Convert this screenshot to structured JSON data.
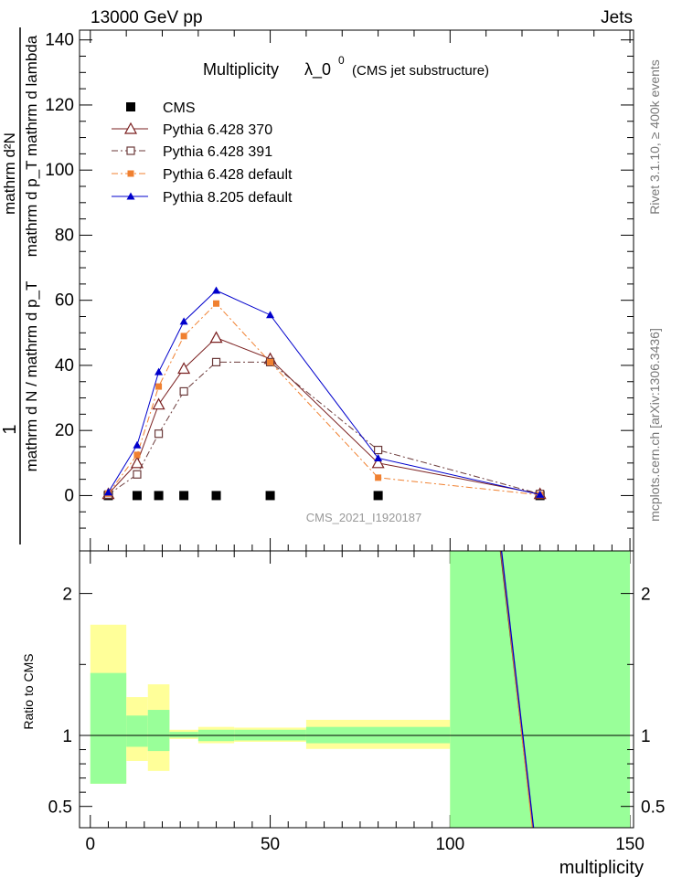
{
  "header": {
    "left": "13000 GeV pp",
    "right": "Jets"
  },
  "side_text": {
    "rivet": "Rivet 3.1.10, ≥ 400k events",
    "mcplots": "mcplots.cern.ch [arXiv:1306.3436]"
  },
  "watermark": "CMS_2021_I1920187",
  "colors": {
    "cms": "#000000",
    "p6_370": "#7a1f1f",
    "p6_391": "#6b3a3a",
    "p6_default": "#f08030",
    "p8_default": "#0000cc",
    "band_green": "#99ff99",
    "band_yellow": "#ffff99"
  },
  "chart_data": [
    {
      "type": "line",
      "title": "Multiplicity",
      "title_lambda": "λ_0",
      "title_sup": "0",
      "title_suffix": "(CMS jet substructure)",
      "xlabel": "multiplicity",
      "ylabel_numerator": "1",
      "ylabel_denominator": "mathrm d N / mathrm d p_T",
      "ylabel_numer2": "mathrm d²N",
      "ylabel_denom2": "mathrm d p_T mathrm d lambda",
      "xlim": [
        -3,
        151
      ],
      "ylim": [
        -17,
        143
      ],
      "yticks": [
        "0",
        "20",
        "40",
        "60",
        "80",
        "100",
        "120",
        "140"
      ],
      "legend_position": "top-left",
      "series": [
        {
          "name": "CMS",
          "marker": "filled-square",
          "line": "none",
          "x": [
            5,
            13,
            19,
            26,
            35,
            50,
            80,
            125
          ],
          "y": [
            0,
            0,
            0,
            0,
            0,
            0,
            0,
            0
          ]
        },
        {
          "name": "Pythia 6.428 370",
          "marker": "open-triangle",
          "line": "solid",
          "x": [
            5,
            13,
            19,
            26,
            35,
            50,
            80,
            125
          ],
          "y": [
            0.5,
            10,
            28,
            39,
            48.5,
            42,
            10,
            0.5
          ]
        },
        {
          "name": "Pythia 6.428 391",
          "marker": "open-square",
          "line": "dashdot",
          "x": [
            5,
            13,
            19,
            26,
            35,
            50,
            80,
            125
          ],
          "y": [
            0.3,
            6.5,
            19,
            32,
            41,
            41,
            14,
            0.5
          ]
        },
        {
          "name": "Pythia 6.428 default",
          "marker": "filled-square-small",
          "line": "dashdot",
          "x": [
            5,
            13,
            19,
            26,
            35,
            50,
            80,
            125
          ],
          "y": [
            0.6,
            12.5,
            33.5,
            49,
            59,
            41,
            5.5,
            0.2
          ]
        },
        {
          "name": "Pythia 8.205 default",
          "marker": "filled-triangle",
          "line": "solid",
          "x": [
            5,
            13,
            19,
            26,
            35,
            50,
            80,
            125
          ],
          "y": [
            1,
            15.5,
            38,
            53.5,
            63,
            55.5,
            11.5,
            0.3
          ]
        }
      ]
    },
    {
      "type": "area",
      "ylabel": "Ratio to CMS",
      "xlim": [
        -3,
        151
      ],
      "ylim": [
        0.35,
        2.3
      ],
      "yticks": [
        "0.5",
        "1",
        "2"
      ],
      "xticks": [
        "0",
        "50",
        "100",
        "150"
      ],
      "bands": [
        {
          "x0": 0,
          "x1": 10,
          "yellow": [
            0.66,
            1.78
          ],
          "green": [
            0.66,
            1.44
          ]
        },
        {
          "x0": 10,
          "x1": 16,
          "yellow": [
            0.82,
            1.27
          ],
          "green": [
            0.92,
            1.14
          ]
        },
        {
          "x0": 16,
          "x1": 22,
          "yellow": [
            0.75,
            1.36
          ],
          "green": [
            0.89,
            1.18
          ]
        },
        {
          "x0": 22,
          "x1": 30,
          "yellow": [
            0.975,
            1.04
          ],
          "green": [
            0.985,
            1.025
          ]
        },
        {
          "x0": 30,
          "x1": 40,
          "yellow": [
            0.945,
            1.06
          ],
          "green": [
            0.96,
            1.04
          ]
        },
        {
          "x0": 40,
          "x1": 60,
          "yellow": [
            0.955,
            1.055
          ],
          "green": [
            0.965,
            1.04
          ]
        },
        {
          "x0": 60,
          "x1": 100,
          "yellow": [
            0.905,
            1.11
          ],
          "green": [
            0.945,
            1.06
          ]
        },
        {
          "x0": 100,
          "x1": 150,
          "yellow": [
            0.35,
            2.3
          ],
          "green": [
            0.35,
            2.3
          ]
        }
      ],
      "ratio_lines": [
        {
          "name": "Pythia 6.428 370",
          "x": [
            114,
            123
          ],
          "y": [
            2.3,
            0.35
          ]
        },
        {
          "name": "Pythia 6.428 391",
          "x": [
            114.1,
            123.1
          ],
          "y": [
            2.3,
            0.35
          ]
        },
        {
          "name": "Pythia 6.428 default",
          "x": [
            114.2,
            122.9
          ],
          "y": [
            2.3,
            0.35
          ]
        },
        {
          "name": "Pythia 8.205 default",
          "x": [
            114.3,
            123.2
          ],
          "y": [
            2.3,
            0.35
          ]
        }
      ]
    }
  ]
}
